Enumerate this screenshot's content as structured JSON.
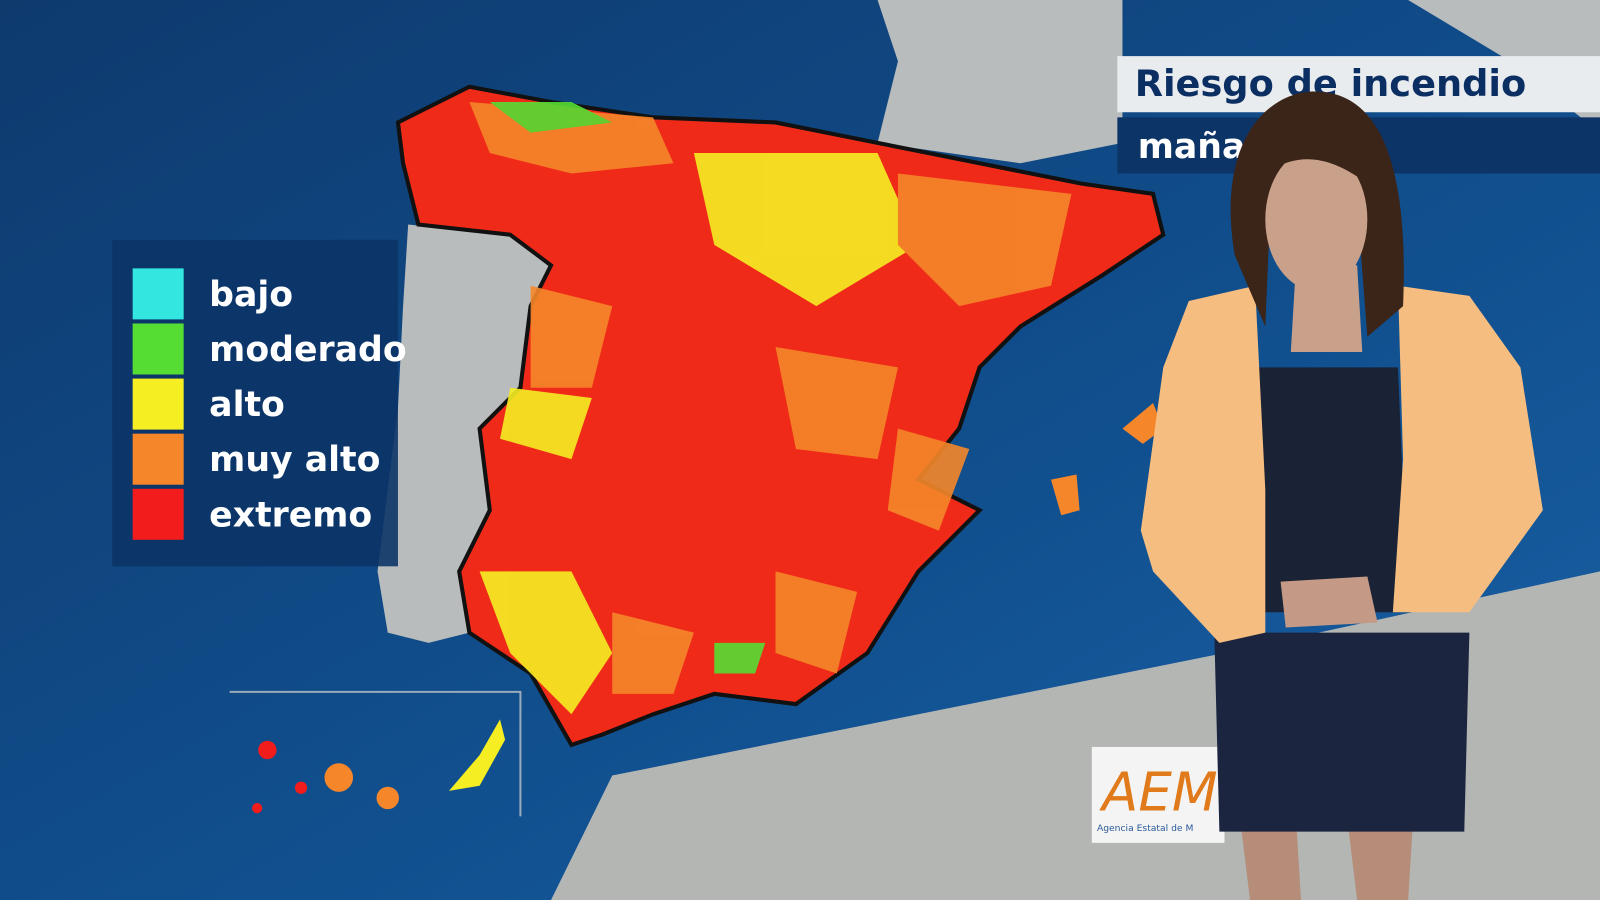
{
  "header": {
    "title": "Riesgo de incendio",
    "subtitle": "maña"
  },
  "legend": {
    "items": [
      {
        "label": "bajo",
        "color": "#33e6e0"
      },
      {
        "label": "moderado",
        "color": "#55dd33"
      },
      {
        "label": "alto",
        "color": "#f5ee22"
      },
      {
        "label": "muy alto",
        "color": "#f5872a"
      },
      {
        "label": "extremo",
        "color": "#f21c1c"
      }
    ]
  },
  "logo": {
    "mark": "AEM",
    "caption": "Agencia Estatal de M"
  }
}
